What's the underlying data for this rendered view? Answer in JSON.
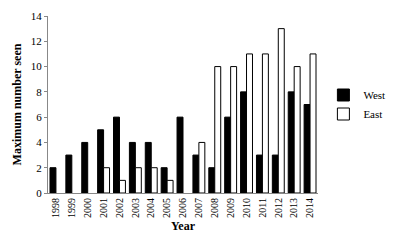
{
  "chart_data": {
    "type": "bar",
    "x_label": "Year",
    "y_label": "Maximum number seen",
    "categories": [
      "1998",
      "1999",
      "2000",
      "2001",
      "2002",
      "2003",
      "2004",
      "2005",
      "2006",
      "2007",
      "2008",
      "2009",
      "2010",
      "2011",
      "2012",
      "2013",
      "2014"
    ],
    "series": [
      {
        "name": "West",
        "color": "#000000",
        "values": [
          2,
          3,
          4,
          5,
          6,
          4,
          4,
          2,
          6,
          3,
          2,
          6,
          8,
          3,
          3,
          8,
          7
        ]
      },
      {
        "name": "East",
        "color": "#ffffff",
        "values": [
          null,
          null,
          null,
          2,
          1,
          2,
          2,
          1,
          null,
          4,
          10,
          10,
          11,
          11,
          13,
          10,
          11
        ]
      }
    ],
    "ylim": [
      0,
      14
    ],
    "yticks": [
      0,
      2,
      4,
      6,
      8,
      10,
      12,
      14
    ],
    "grid": false,
    "legend": "right"
  }
}
